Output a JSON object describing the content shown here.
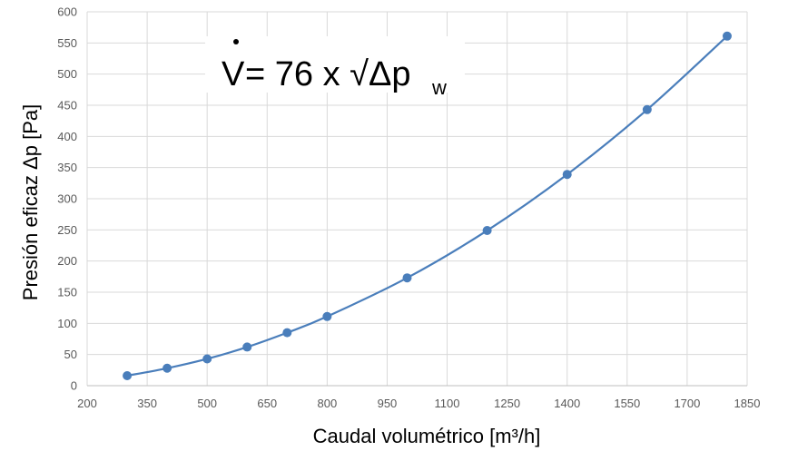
{
  "chart_data": {
    "type": "line",
    "title": "",
    "annotation": {
      "symbol": "V",
      "text": " = 76 x √Δp",
      "subscript": "w"
    },
    "xlabel": "Caudal volumétrico [m³/h]",
    "ylabel": "Presión eficaz Δp [Pa]",
    "xlim": [
      200,
      1850
    ],
    "ylim": [
      0,
      600
    ],
    "x_ticks": [
      "200",
      "350",
      "500",
      "650",
      "800",
      "950",
      "1100",
      "1250",
      "1400",
      "1550",
      "1700",
      "1850"
    ],
    "y_ticks": [
      "0",
      "50",
      "100",
      "150",
      "200",
      "250",
      "300",
      "350",
      "400",
      "450",
      "500",
      "550",
      "600"
    ],
    "grid": true,
    "series_color": "#4a7ebb",
    "series": [
      {
        "x": [
          300,
          400,
          500,
          600,
          700,
          800,
          1000,
          1200,
          1400,
          1600,
          1800
        ],
        "y": [
          16,
          28,
          43,
          62,
          85,
          111,
          173,
          249,
          339,
          443,
          561
        ]
      }
    ]
  }
}
